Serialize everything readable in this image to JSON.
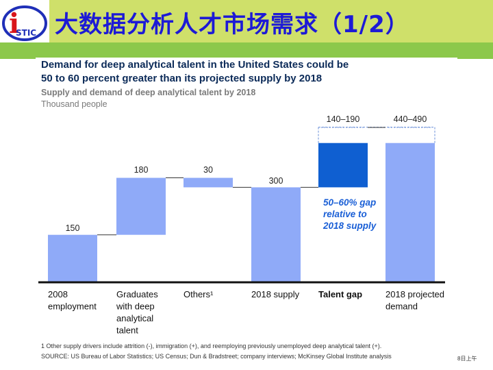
{
  "slide": {
    "title": "大数据分析人才市场需求（1/2）",
    "logo_letter": "i",
    "logo_text": "STIC"
  },
  "headline": {
    "line1": "Demand for deep analytical talent in the United States could be",
    "line2": "50 to 60 percent greater than its projected supply by 2018"
  },
  "subtitle": "Supply and demand of deep analytical talent by 2018",
  "units": "Thousand people",
  "gap_note": [
    "50–60% gap",
    "relative to",
    "2018 supply"
  ],
  "footnote": "1  Other supply drivers include attrition (-), immigration (+), and reemploying previously unemployed deep analytical talent (+).",
  "source": "SOURCE: US Bureau of Labor Statistics; US Census; Dun & Bradstreet; company interviews; McKinsey Global Institute analysis",
  "stamp": "8日上午",
  "colors": {
    "title": "#1d1ad6",
    "header_band": "#cfe06a",
    "green_bar": "#8cc84b",
    "bar": "#8faaf8",
    "gap_bar": "#0f5fd1",
    "gap_text": "#1a5fd6",
    "axis": "#111111"
  },
  "chart_data": {
    "type": "bar",
    "subtype": "waterfall",
    "title": "Supply and demand of deep analytical talent by 2018",
    "ylabel": "Thousand people",
    "categories": [
      {
        "label": [
          "2008",
          "employment"
        ],
        "value_label": "150",
        "bold": false
      },
      {
        "label": [
          "Graduates",
          "with deep",
          "analytical",
          "talent"
        ],
        "value_label": "180",
        "bold": false
      },
      {
        "label": [
          "Others¹"
        ],
        "value_label": "30",
        "bold": false
      },
      {
        "label": [
          "2018 supply"
        ],
        "value_label": "300",
        "bold": false
      },
      {
        "label": [
          "Talent gap"
        ],
        "value_label": "140–190",
        "bold": true
      },
      {
        "label": [
          "2018 projected",
          "demand"
        ],
        "value_label": "440–490",
        "bold": false
      }
    ],
    "bars": [
      {
        "base": 0,
        "top": 150
      },
      {
        "base": 150,
        "top": 330
      },
      {
        "base": 300,
        "top": 330
      },
      {
        "base": 0,
        "top": 300
      },
      {
        "base": 300,
        "top": 440
      },
      {
        "base": 0,
        "top": 440
      }
    ],
    "gap_range_top": 490,
    "ylim": [
      0,
      520
    ]
  }
}
